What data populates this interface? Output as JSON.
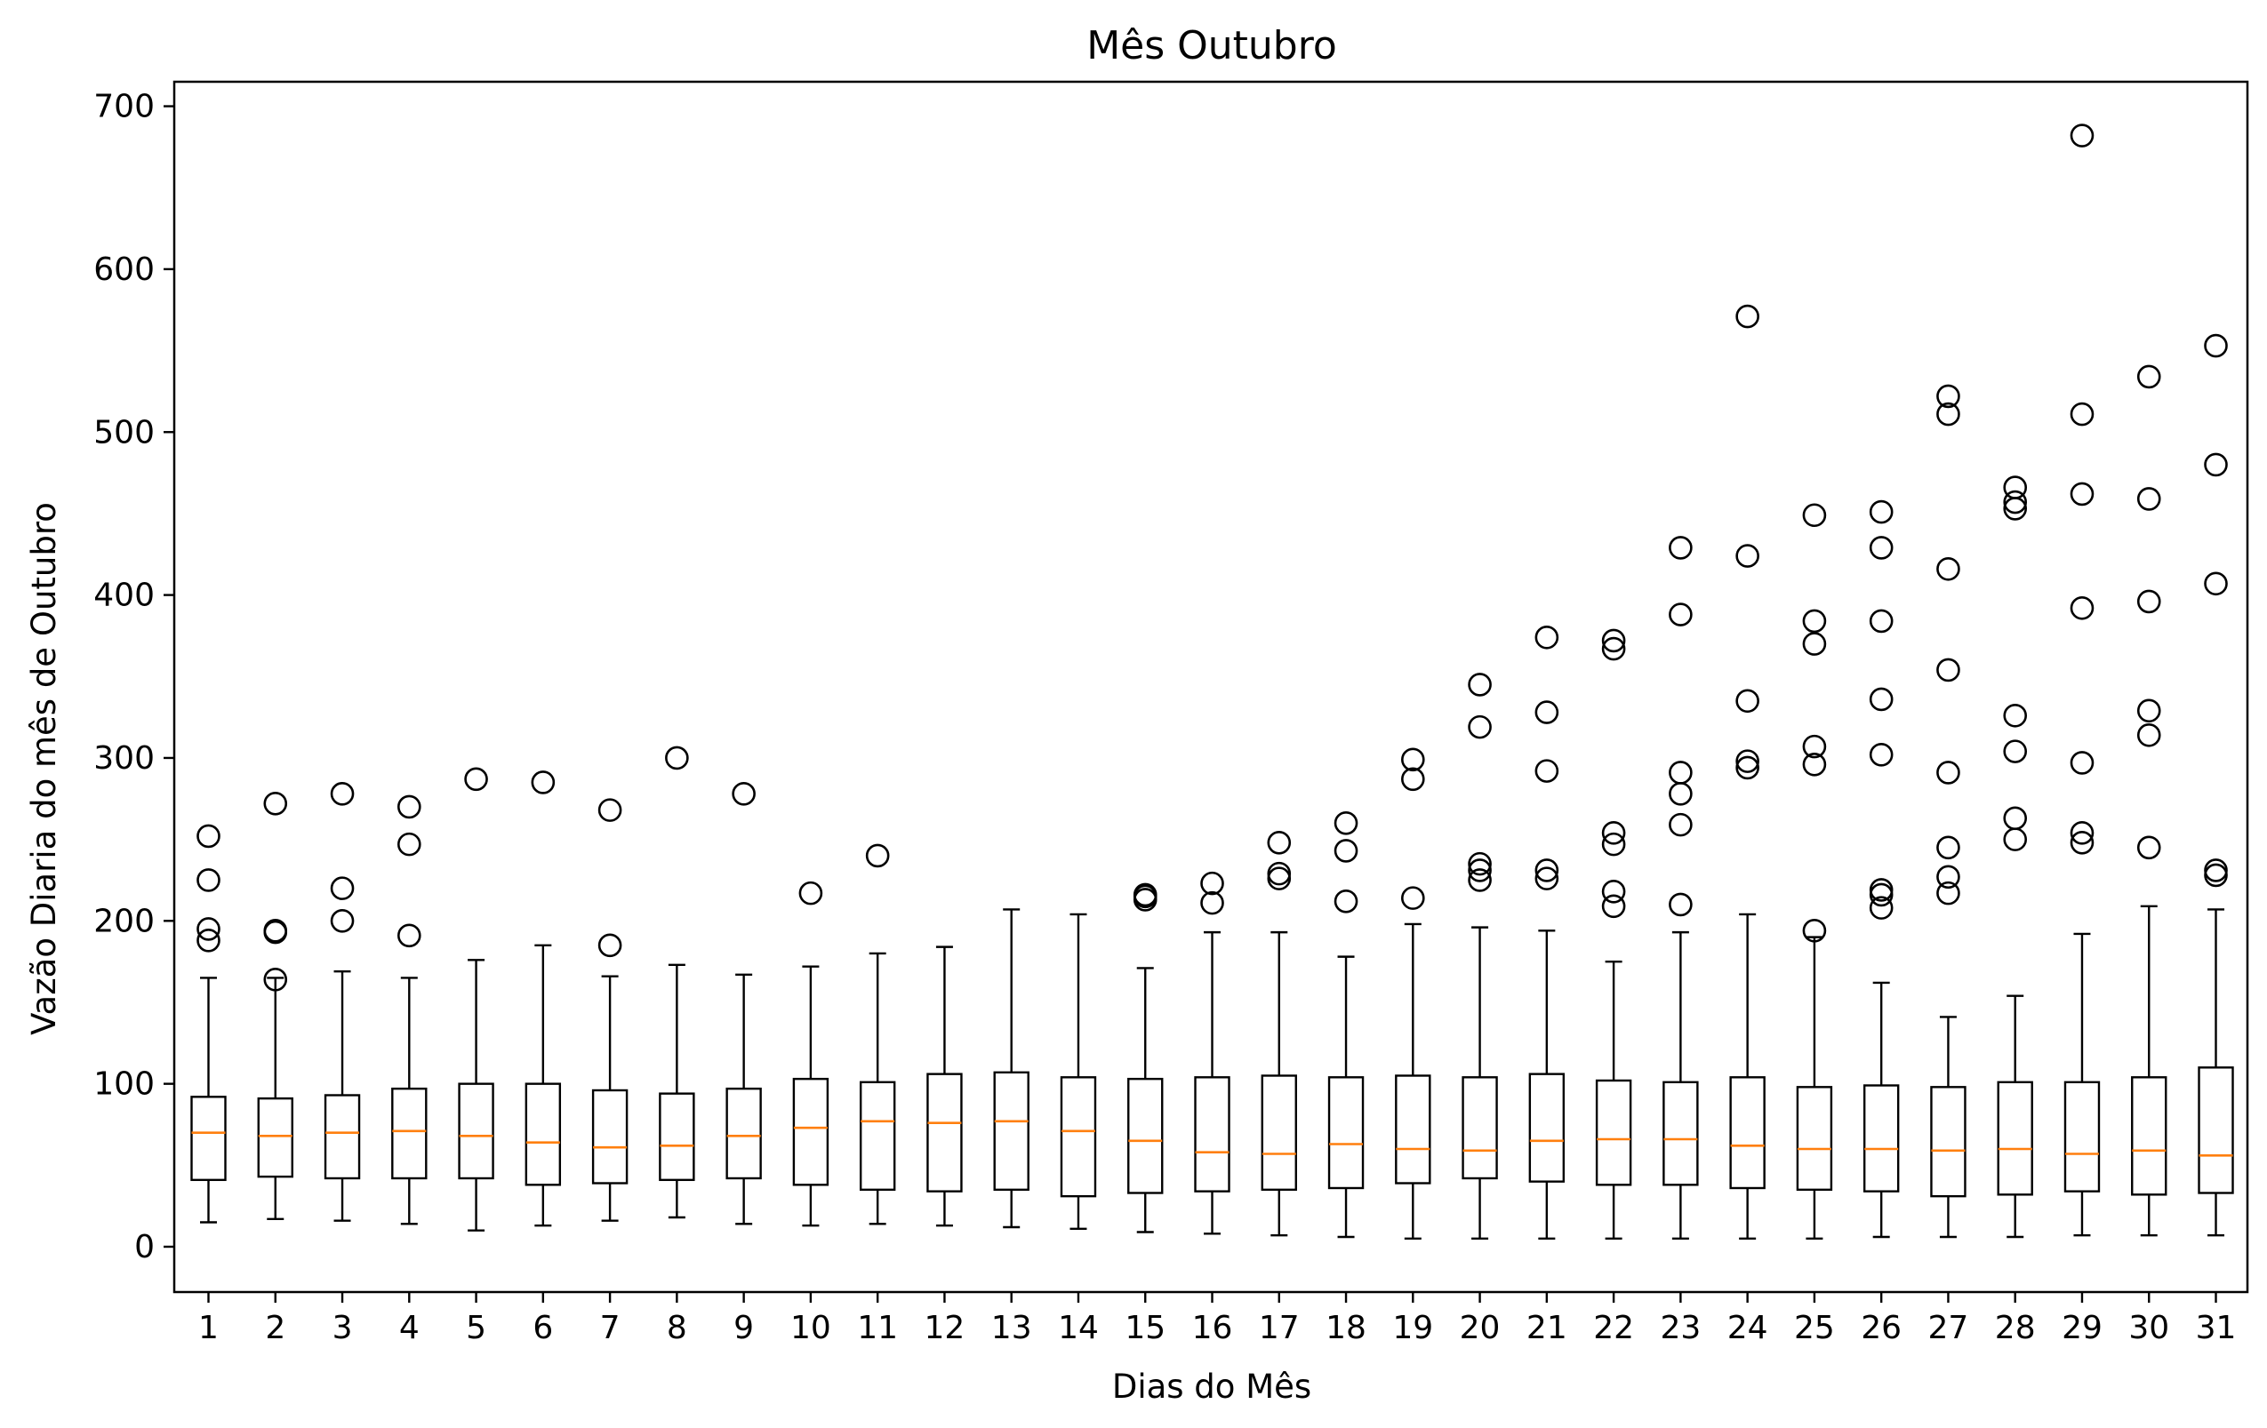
{
  "chart_data": {
    "type": "boxplot",
    "title": "Mês Outubro",
    "xlabel": "Dias do Mês",
    "ylabel": "Vazão Diaria do mês de Outubro",
    "ylim": [
      -30,
      715
    ],
    "yticks": [
      0,
      100,
      200,
      300,
      400,
      500,
      600,
      700
    ],
    "grid": false,
    "colors": {
      "box": "#000000",
      "median": "#ff7f0e",
      "flier": "#000000"
    },
    "categories": [
      "1",
      "2",
      "3",
      "4",
      "5",
      "6",
      "7",
      "8",
      "9",
      "10",
      "11",
      "12",
      "13",
      "14",
      "15",
      "16",
      "17",
      "18",
      "19",
      "20",
      "21",
      "22",
      "23",
      "24",
      "25",
      "26",
      "27",
      "28",
      "29",
      "30",
      "31"
    ],
    "boxes": [
      {
        "whislo": 15,
        "q1": 41,
        "med": 70,
        "q3": 92,
        "whishi": 165,
        "fliers": [
          188,
          195,
          225,
          252
        ]
      },
      {
        "whislo": 17,
        "q1": 43,
        "med": 68,
        "q3": 91,
        "whishi": 165,
        "fliers": [
          164,
          193,
          194,
          272
        ]
      },
      {
        "whislo": 16,
        "q1": 42,
        "med": 70,
        "q3": 93,
        "whishi": 169,
        "fliers": [
          200,
          220,
          278
        ]
      },
      {
        "whislo": 14,
        "q1": 42,
        "med": 71,
        "q3": 97,
        "whishi": 165,
        "fliers": [
          191,
          247,
          270
        ]
      },
      {
        "whislo": 10,
        "q1": 42,
        "med": 68,
        "q3": 100,
        "whishi": 176,
        "fliers": [
          287
        ]
      },
      {
        "whislo": 13,
        "q1": 38,
        "med": 64,
        "q3": 100,
        "whishi": 185,
        "fliers": [
          285
        ]
      },
      {
        "whislo": 16,
        "q1": 39,
        "med": 61,
        "q3": 96,
        "whishi": 166,
        "fliers": [
          185,
          268
        ]
      },
      {
        "whislo": 18,
        "q1": 41,
        "med": 62,
        "q3": 94,
        "whishi": 173,
        "fliers": [
          300
        ]
      },
      {
        "whislo": 14,
        "q1": 42,
        "med": 68,
        "q3": 97,
        "whishi": 167,
        "fliers": [
          278
        ]
      },
      {
        "whislo": 13,
        "q1": 38,
        "med": 73,
        "q3": 103,
        "whishi": 172,
        "fliers": [
          217
        ]
      },
      {
        "whislo": 14,
        "q1": 35,
        "med": 77,
        "q3": 101,
        "whishi": 180,
        "fliers": [
          240
        ]
      },
      {
        "whislo": 13,
        "q1": 34,
        "med": 76,
        "q3": 106,
        "whishi": 184,
        "fliers": []
      },
      {
        "whislo": 12,
        "q1": 35,
        "med": 77,
        "q3": 107,
        "whishi": 207,
        "fliers": []
      },
      {
        "whislo": 11,
        "q1": 31,
        "med": 71,
        "q3": 104,
        "whishi": 204,
        "fliers": []
      },
      {
        "whislo": 9,
        "q1": 33,
        "med": 65,
        "q3": 103,
        "whishi": 171,
        "fliers": [
          213,
          215,
          216
        ]
      },
      {
        "whislo": 8,
        "q1": 34,
        "med": 58,
        "q3": 104,
        "whishi": 193,
        "fliers": [
          211,
          223
        ]
      },
      {
        "whislo": 7,
        "q1": 35,
        "med": 57,
        "q3": 105,
        "whishi": 193,
        "fliers": [
          226,
          229,
          248
        ]
      },
      {
        "whislo": 6,
        "q1": 36,
        "med": 63,
        "q3": 104,
        "whishi": 178,
        "fliers": [
          212,
          243,
          260
        ]
      },
      {
        "whislo": 5,
        "q1": 39,
        "med": 60,
        "q3": 105,
        "whishi": 198,
        "fliers": [
          214,
          287,
          299
        ]
      },
      {
        "whislo": 5,
        "q1": 42,
        "med": 59,
        "q3": 104,
        "whishi": 196,
        "fliers": [
          225,
          231,
          235,
          319,
          345
        ]
      },
      {
        "whislo": 5,
        "q1": 40,
        "med": 65,
        "q3": 106,
        "whishi": 194,
        "fliers": [
          226,
          231,
          292,
          328,
          374
        ]
      },
      {
        "whislo": 5,
        "q1": 38,
        "med": 66,
        "q3": 102,
        "whishi": 175,
        "fliers": [
          209,
          218,
          247,
          254,
          367,
          372
        ]
      },
      {
        "whislo": 5,
        "q1": 38,
        "med": 66,
        "q3": 101,
        "whishi": 193,
        "fliers": [
          210,
          259,
          278,
          291,
          388,
          429
        ]
      },
      {
        "whislo": 5,
        "q1": 36,
        "med": 62,
        "q3": 104,
        "whishi": 204,
        "fliers": [
          294,
          298,
          335,
          424,
          571
        ]
      },
      {
        "whislo": 5,
        "q1": 35,
        "med": 60,
        "q3": 98,
        "whishi": 190,
        "fliers": [
          194,
          296,
          307,
          370,
          384,
          449
        ]
      },
      {
        "whislo": 6,
        "q1": 34,
        "med": 60,
        "q3": 99,
        "whishi": 162,
        "fliers": [
          208,
          216,
          219,
          302,
          336,
          384,
          429,
          451
        ]
      },
      {
        "whislo": 6,
        "q1": 31,
        "med": 59,
        "q3": 98,
        "whishi": 141,
        "fliers": [
          217,
          227,
          245,
          291,
          354,
          416,
          511,
          522
        ]
      },
      {
        "whislo": 6,
        "q1": 32,
        "med": 60,
        "q3": 101,
        "whishi": 154,
        "fliers": [
          250,
          263,
          304,
          326,
          453,
          457,
          466
        ]
      },
      {
        "whislo": 7,
        "q1": 34,
        "med": 57,
        "q3": 101,
        "whishi": 192,
        "fliers": [
          248,
          254,
          297,
          392,
          462,
          511,
          682
        ]
      },
      {
        "whislo": 7,
        "q1": 32,
        "med": 59,
        "q3": 104,
        "whishi": 209,
        "fliers": [
          245,
          314,
          329,
          396,
          459,
          534
        ]
      },
      {
        "whislo": 7,
        "q1": 33,
        "med": 56,
        "q3": 110,
        "whishi": 207,
        "fliers": [
          228,
          231,
          407,
          480,
          553
        ]
      }
    ]
  }
}
